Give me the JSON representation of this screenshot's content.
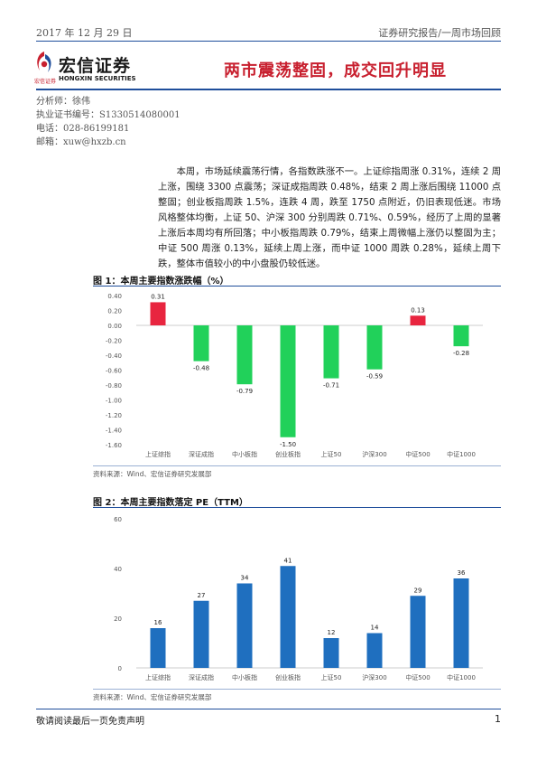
{
  "header": {
    "date": "2017 年 12 月 29 日",
    "report_type": "证券研究报告/一周市场回顾"
  },
  "logo": {
    "name": "宏信证券",
    "sub_cn": "宏信证券",
    "sub_en": "HONGXIN SECURITIES",
    "colors": {
      "red": "#c8202f",
      "blue": "#1f4e9b"
    }
  },
  "headline": "两市震荡整固，成交回升明显",
  "analyst": {
    "name_line": "分析师：徐伟",
    "license_line": "执业证书编号：S1330514080001",
    "phone_line": "电话：028-86199181",
    "email_line": "邮箱：xuw@hxzb.cn"
  },
  "summary": "本周，市场延续震荡行情，各指数跌涨不一。上证综指周涨 0.31%，连续 2 周上涨，围绕 3300 点震荡；深证成指周跌 0.48%，结束 2 周上涨后围绕 11000 点整固；创业板指周跌 1.5%，连跌 4 周，跌至 1750 点附近，仍旧表现低迷。市场风格整体均衡，上证 50、沪深 300 分别周跌 0.71%、0.59%，经历了上周的显著上涨后本周均有所回落；中小板指周跌 0.79%，结束上周微幅上涨仍以整固为主；中证 500 周涨 0.13%，延续上周上涨，而中证 1000 周跌 0.28%，延续上周下跌，整体市值较小的中小盘股仍较低迷。",
  "figure1": {
    "title": "图 1：本周主要指数涨跌幅（%）",
    "source": "资料来源：Wind、宏信证券研究发展部"
  },
  "figure2": {
    "title": "图 2：本周主要指数落定 PE（TTM）",
    "source": "资料来源：Wind、宏信证券研究发展部"
  },
  "chart_data": [
    {
      "type": "bar",
      "categories": [
        "上证综指",
        "深证成指",
        "中小板指",
        "创业板指",
        "上证50",
        "沪深300",
        "中证500",
        "中证1000"
      ],
      "values": [
        0.31,
        -0.48,
        -0.79,
        -1.5,
        -0.71,
        -0.59,
        0.13,
        -0.28
      ],
      "value_labels": [
        "0.31",
        "-0.48",
        "-0.79",
        "-1.50",
        "-0.71",
        "-0.59",
        "0.13",
        "-0.28"
      ],
      "ylim": [
        -1.6,
        0.4
      ],
      "yticks": [
        0.4,
        0.2,
        0.0,
        -0.2,
        -0.4,
        -0.6,
        -0.8,
        -1.0,
        -1.2,
        -1.4,
        -1.6
      ],
      "ytick_labels": [
        "0.40",
        "0.20",
        "0.00",
        "-0.20",
        "-0.40",
        "-0.60",
        "-0.80",
        "-1.00",
        "-1.20",
        "-1.40",
        "-1.60"
      ],
      "colors": {
        "positive": "#e8253f",
        "negative": "#21d15a"
      },
      "grid": false,
      "title": "",
      "xlabel": "",
      "ylabel": ""
    },
    {
      "type": "bar",
      "categories": [
        "上证综指",
        "深证成指",
        "中小板指",
        "创业板指",
        "上证50",
        "沪深300",
        "中证500",
        "中证1000"
      ],
      "values": [
        16,
        27,
        34,
        41,
        12,
        14,
        29,
        36
      ],
      "value_labels": [
        "16",
        "27",
        "34",
        "41",
        "12",
        "14",
        "29",
        "36"
      ],
      "ylim": [
        0,
        60
      ],
      "yticks": [
        0,
        20,
        40,
        60
      ],
      "ytick_labels": [
        "0",
        "20",
        "40",
        "60"
      ],
      "colors": {
        "bar": "#1f6fbf"
      },
      "grid": false,
      "title": "",
      "xlabel": "",
      "ylabel": ""
    }
  ],
  "footer": {
    "notice": "敬请阅读最后一页免责声明",
    "page": "1"
  }
}
